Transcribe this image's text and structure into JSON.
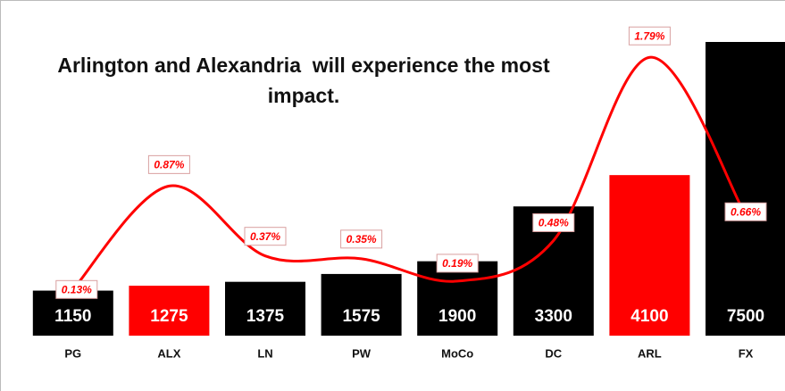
{
  "chart_data": {
    "type": "bar",
    "title": "Arlington and Alexandria  will experience the most impact.",
    "categories": [
      "PG",
      "ALX",
      "LN",
      "PW",
      "MoCo",
      "DC",
      "ARL",
      "FX"
    ],
    "series": [
      {
        "type": "bar",
        "colors": [
          "#000000",
          "#ff0000",
          "#000000",
          "#000000",
          "#000000",
          "#000000",
          "#ff0000",
          "#000000"
        ],
        "values": [
          1150,
          1275,
          1375,
          1575,
          1900,
          3300,
          4100,
          7500
        ]
      },
      {
        "type": "line",
        "axis": "y2",
        "color": "#ff0000",
        "values": [
          0.13,
          0.87,
          0.37,
          0.35,
          0.19,
          0.48,
          1.79,
          0.66
        ],
        "value_labels": [
          "0.13%",
          "0.87%",
          "0.37%",
          "0.35%",
          "0.19%",
          "0.48%",
          "1.79%",
          "0.66%"
        ]
      }
    ],
    "ylim": [
      0,
      7500
    ],
    "y2lim": [
      -0.2,
      1.9
    ]
  }
}
